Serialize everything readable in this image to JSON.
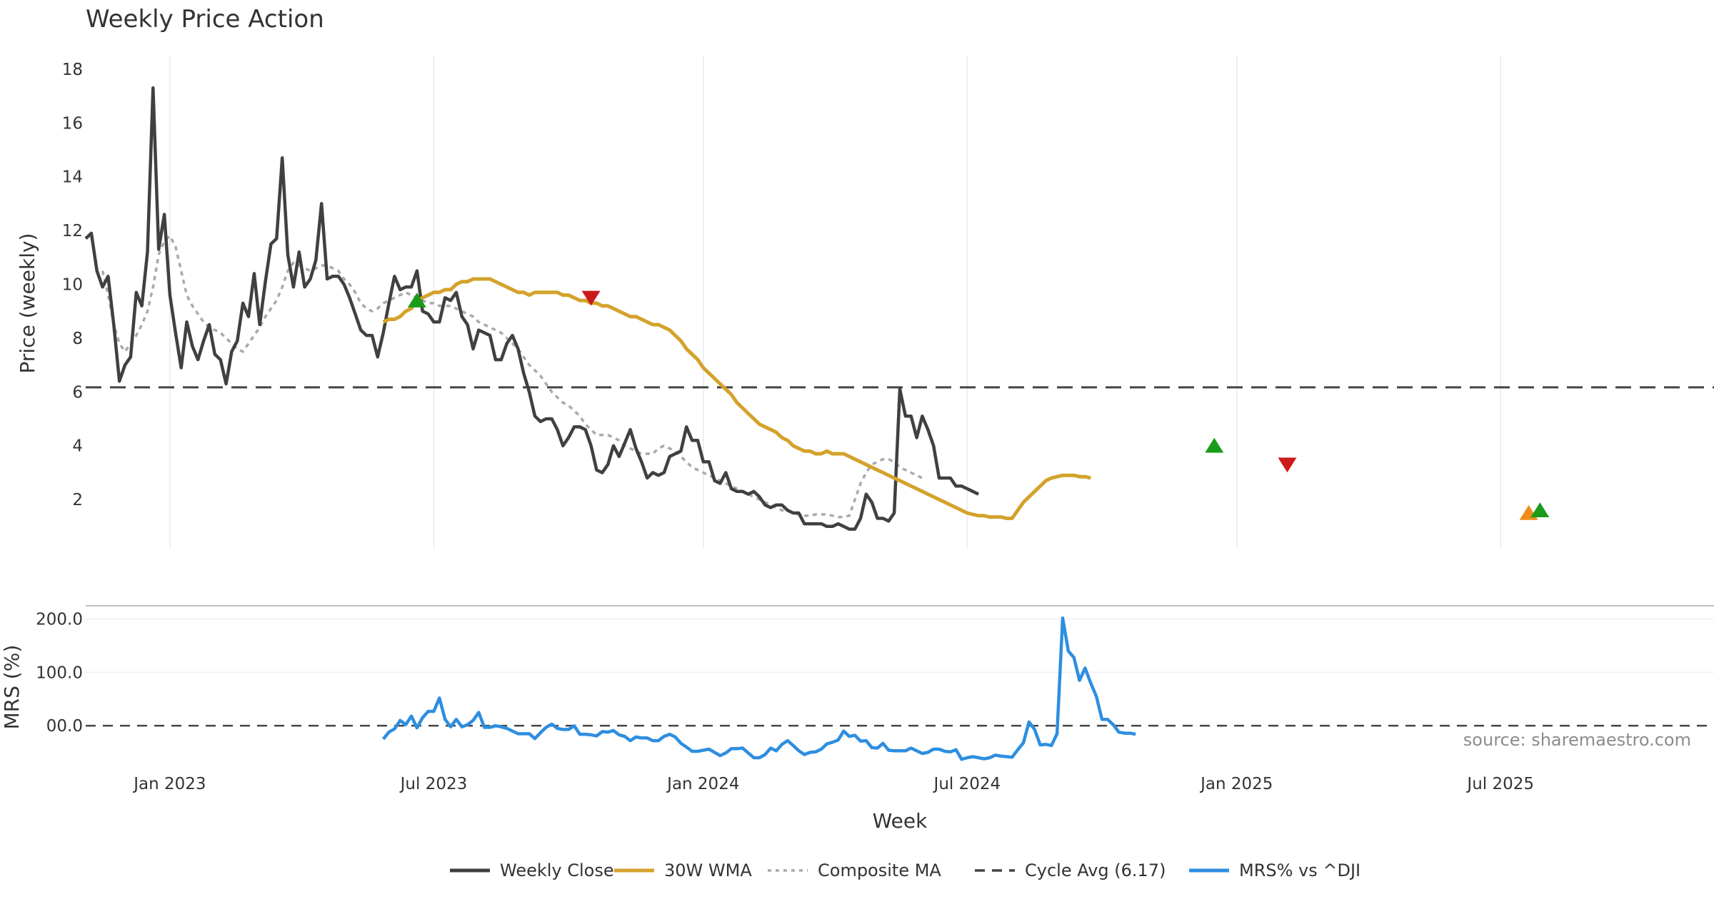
{
  "chart_data": {
    "type": "line",
    "title": "Weekly Price Action",
    "source_note": "source: sharemaestro.com",
    "xlabel": "Week",
    "x_tick_labels": [
      "Jan 2023",
      "Jul 2023",
      "Jan 2024",
      "Jul 2024",
      "Jan 2025",
      "Jul 2025"
    ],
    "x_tick_weeks": [
      8,
      55,
      103,
      150,
      198,
      245
    ],
    "week_range": [
      -7,
      283
    ],
    "colors": {
      "close": "#404040",
      "wma": "#d4a22b",
      "composite": "#aaaaaa",
      "cycle": "#444444",
      "mrs": "#2e8ee0",
      "buy": "#1a9c1a",
      "sell": "#cc1a1a",
      "alert": "#f08c1a"
    },
    "price_panel": {
      "ylabel": "Price (weekly)",
      "ylim": [
        0.2,
        18.5
      ],
      "y_ticks": [
        2,
        4,
        6,
        8,
        10,
        12,
        14,
        16,
        18
      ],
      "cycle_avg": 6.17,
      "series": {
        "weekly_close": {
          "name": "Weekly Close",
          "start_week": -7,
          "values": [
            11.7,
            11.9,
            10.5,
            9.9,
            10.3,
            8.5,
            6.4,
            7.0,
            7.3,
            9.7,
            9.2,
            11.2,
            17.3,
            11.3,
            12.6,
            9.6,
            8.2,
            6.9,
            8.6,
            7.7,
            7.2,
            7.9,
            8.5,
            7.4,
            7.2,
            6.3,
            7.5,
            7.9,
            9.3,
            8.8,
            10.4,
            8.5,
            10.1,
            11.5,
            11.7,
            14.7,
            11.1,
            9.9,
            11.2,
            9.9,
            10.2,
            10.9,
            13.0,
            10.2,
            10.3,
            10.3,
            10.0,
            9.5,
            8.9,
            8.3,
            8.1,
            8.1,
            7.3,
            8.2,
            9.3,
            10.3,
            9.8,
            9.9,
            9.9,
            10.5,
            9.0,
            8.9,
            8.6,
            8.6,
            9.5,
            9.4,
            9.7,
            8.8,
            8.5,
            7.6,
            8.3,
            8.2,
            8.1,
            7.2,
            7.2,
            7.8,
            8.1,
            7.6,
            6.7,
            6.0,
            5.1,
            4.9,
            5.0,
            5.0,
            4.6,
            4.0,
            4.3,
            4.7,
            4.7,
            4.6,
            4.0,
            3.1,
            3.0,
            3.3,
            4.0,
            3.6,
            4.1,
            4.6,
            3.9,
            3.4,
            2.8,
            3.0,
            2.9,
            3.0,
            3.6,
            3.7,
            3.8,
            4.7,
            4.2,
            4.2,
            3.4,
            3.4,
            2.7,
            2.6,
            3.0,
            2.4,
            2.3,
            2.3,
            2.2,
            2.3,
            2.1,
            1.8,
            1.7,
            1.8,
            1.8,
            1.6,
            1.5,
            1.5,
            1.1,
            1.1,
            1.1,
            1.1,
            1.0,
            1.0,
            1.1,
            1.0,
            0.9,
            0.9,
            1.3,
            2.2,
            1.9,
            1.3,
            1.3,
            1.2,
            1.5,
            6.1,
            5.1,
            5.1,
            4.3,
            5.1,
            4.6,
            4.0,
            2.8,
            2.8,
            2.8,
            2.5,
            2.5,
            2.4,
            2.3,
            2.2
          ]
        },
        "wma_30w": {
          "name": "30W WMA",
          "start_week": 46,
          "values": [
            8.6,
            8.7,
            8.7,
            8.8,
            9.0,
            9.1,
            9.4,
            9.5,
            9.6,
            9.7,
            9.7,
            9.8,
            9.8,
            10.0,
            10.1,
            10.1,
            10.2,
            10.2,
            10.2,
            10.2,
            10.1,
            10.0,
            9.9,
            9.8,
            9.7,
            9.7,
            9.6,
            9.7,
            9.7,
            9.7,
            9.7,
            9.7,
            9.6,
            9.6,
            9.5,
            9.4,
            9.4,
            9.3,
            9.3,
            9.2,
            9.2,
            9.1,
            9.0,
            8.9,
            8.8,
            8.8,
            8.7,
            8.6,
            8.5,
            8.5,
            8.4,
            8.3,
            8.1,
            7.9,
            7.6,
            7.4,
            7.2,
            6.9,
            6.7,
            6.5,
            6.3,
            6.1,
            5.9,
            5.6,
            5.4,
            5.2,
            5.0,
            4.8,
            4.7,
            4.6,
            4.5,
            4.3,
            4.2,
            4.0,
            3.9,
            3.8,
            3.8,
            3.7,
            3.7,
            3.8,
            3.7,
            3.7,
            3.7,
            3.6,
            3.5,
            3.4,
            3.3,
            3.2,
            3.1,
            3.0,
            2.9,
            2.8,
            2.7,
            2.6,
            2.5,
            2.4,
            2.3,
            2.2,
            2.1,
            2.0,
            1.9,
            1.8,
            1.7,
            1.6,
            1.5,
            1.45,
            1.4,
            1.4,
            1.35,
            1.35,
            1.35,
            1.3,
            1.3,
            1.6,
            1.9,
            2.1,
            2.3,
            2.5,
            2.7,
            2.8,
            2.85,
            2.9,
            2.9,
            2.9,
            2.85,
            2.85,
            2.8
          ]
        },
        "composite_ma": {
          "name": "Composite MA",
          "start_week": -4,
          "values": [
            10.5,
            9.6,
            8.5,
            7.8,
            7.5,
            7.8,
            8.1,
            8.5,
            9.0,
            9.9,
            11.1,
            11.6,
            11.8,
            11.4,
            10.5,
            9.6,
            9.2,
            8.9,
            8.6,
            8.4,
            8.3,
            8.2,
            8.0,
            7.8,
            7.6,
            7.5,
            7.8,
            8.1,
            8.4,
            8.8,
            9.1,
            9.4,
            9.9,
            10.5,
            10.8,
            10.7,
            10.6,
            10.5,
            10.6,
            10.7,
            10.7,
            10.6,
            10.5,
            10.2,
            10.0,
            9.7,
            9.3,
            9.1,
            9.0,
            9.1,
            9.3,
            9.4,
            9.5,
            9.6,
            9.7,
            9.6,
            9.5,
            9.4,
            9.3,
            9.3,
            9.2,
            9.2,
            9.2,
            9.1,
            9.0,
            8.9,
            8.8,
            8.6,
            8.5,
            8.4,
            8.3,
            8.2,
            8.0,
            7.8,
            7.6,
            7.3,
            7.0,
            6.8,
            6.6,
            6.3,
            6.0,
            5.8,
            5.6,
            5.5,
            5.3,
            5.1,
            4.8,
            4.6,
            4.4,
            4.4,
            4.4,
            4.3,
            4.2,
            4.0,
            3.9,
            3.8,
            3.7,
            3.7,
            3.7,
            3.9,
            4.0,
            3.9,
            3.8,
            3.6,
            3.4,
            3.2,
            3.1,
            3.0,
            2.9,
            2.8,
            2.7,
            2.6,
            2.5,
            2.4,
            2.3,
            2.2,
            2.1,
            2.0,
            1.9,
            1.8,
            1.7,
            1.6,
            1.6,
            1.5,
            1.45,
            1.4,
            1.4,
            1.45,
            1.45,
            1.45,
            1.4,
            1.35,
            1.35,
            1.4,
            2.0,
            2.6,
            3.0,
            3.3,
            3.4,
            3.5,
            3.5,
            3.4,
            3.2,
            3.1,
            3.0,
            2.9,
            2.8
          ]
        }
      },
      "markers": [
        {
          "type": "buy",
          "week": 52,
          "value": 9.4
        },
        {
          "type": "sell",
          "week": 83,
          "value": 9.5
        },
        {
          "type": "buy",
          "week": 194,
          "value": 4.0
        },
        {
          "type": "sell",
          "week": 207,
          "value": 3.3
        },
        {
          "type": "alert",
          "week": 250,
          "value": 1.5
        },
        {
          "type": "buy",
          "week": 252,
          "value": 1.6
        }
      ]
    },
    "mrs_panel": {
      "ylabel": "MRS (%)",
      "ylim": [
        -60,
        225
      ],
      "y_ticks": [
        0,
        100,
        200
      ],
      "y_tick_labels": [
        "00.0",
        "100.0",
        "200.0"
      ],
      "series": {
        "mrs": {
          "name": "MRS% vs ^DJI",
          "start_week": 46,
          "values": [
            -25,
            -12,
            -6,
            10,
            2,
            18,
            -4,
            15,
            27,
            27,
            52,
            12,
            -2,
            12,
            -2,
            2,
            10,
            25,
            -3,
            -3,
            0,
            -2,
            -5,
            -10,
            -15,
            -15,
            -15,
            -24,
            -13,
            -3,
            3,
            -5,
            -7,
            -7,
            0,
            -16,
            -16,
            -17,
            -19,
            -11,
            -12,
            -9,
            -17,
            -20,
            -28,
            -21,
            -23,
            -23,
            -28,
            -28,
            -20,
            -16,
            -21,
            -33,
            -40,
            -48,
            -48,
            -46,
            -44,
            -50,
            -56,
            -51,
            -43,
            -43,
            -42,
            -51,
            -60,
            -60,
            -54,
            -42,
            -47,
            -35,
            -28,
            -37,
            -47,
            -54,
            -50,
            -49,
            -44,
            -34,
            -31,
            -27,
            -10,
            -20,
            -18,
            -29,
            -28,
            -41,
            -42,
            -33,
            -46,
            -47,
            -47,
            -47,
            -42,
            -47,
            -52,
            -50,
            -44,
            -44,
            -48,
            -49,
            -45,
            -63,
            -60,
            -58,
            -60,
            -62,
            -60,
            -55,
            -57,
            -58,
            -59,
            -45,
            -32,
            7,
            -7,
            -36,
            -35,
            -37,
            -15,
            202,
            140,
            128,
            85,
            108,
            80,
            55,
            12,
            12,
            2,
            -12,
            -14,
            -14,
            -16
          ]
        }
      }
    },
    "legend": [
      {
        "key": "close",
        "label": "Weekly Close",
        "style": "solid"
      },
      {
        "key": "wma",
        "label": "30W WMA",
        "style": "solid"
      },
      {
        "key": "composite",
        "label": "Composite MA",
        "style": "dotted"
      },
      {
        "key": "cycle",
        "label": "Cycle Avg (6.17)",
        "style": "dashed"
      },
      {
        "key": "mrs",
        "label": "MRS% vs ^DJI",
        "style": "solid"
      }
    ]
  }
}
